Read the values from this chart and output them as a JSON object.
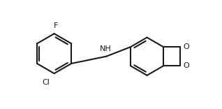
{
  "bg": "#ffffff",
  "lc": "#1a1a1a",
  "lw": 1.5,
  "fs": 7.5,
  "xlim": [
    -0.5,
    10.5
  ],
  "ylim": [
    -0.2,
    5.5
  ]
}
